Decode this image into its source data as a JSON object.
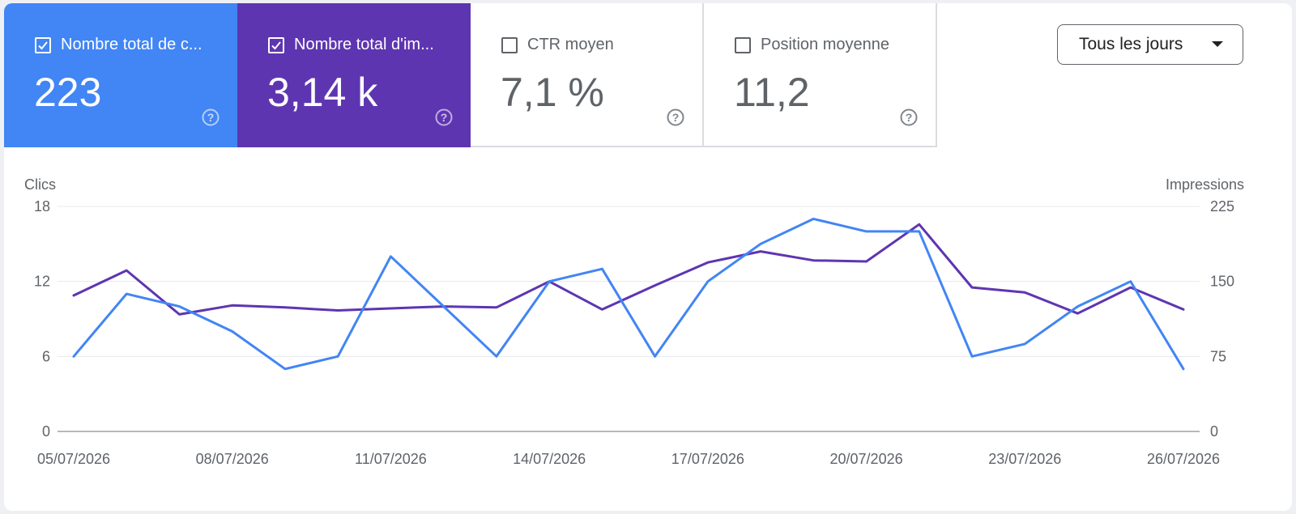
{
  "metrics": [
    {
      "label": "Nombre total de c...",
      "value": "223",
      "checked": true,
      "color": "#4285f4"
    },
    {
      "label": "Nombre total d'im...",
      "value": "3,14 k",
      "checked": true,
      "color": "#5e35b1"
    },
    {
      "label": "CTR moyen",
      "value": "7,1 %",
      "checked": false
    },
    {
      "label": "Position moyenne",
      "value": "11,2",
      "checked": false
    }
  ],
  "dropdown": {
    "label": "Tous les jours"
  },
  "chart_data": {
    "type": "line",
    "x": [
      "05/07/2026",
      "06/07/2026",
      "07/07/2026",
      "08/07/2026",
      "09/07/2026",
      "10/07/2026",
      "11/07/2026",
      "12/07/2026",
      "13/07/2026",
      "14/07/2026",
      "15/07/2026",
      "16/07/2026",
      "17/07/2026",
      "18/07/2026",
      "19/07/2026",
      "20/07/2026",
      "21/07/2026",
      "22/07/2026",
      "23/07/2026",
      "24/07/2026",
      "25/07/2026",
      "26/07/2026"
    ],
    "x_tick_labels": [
      "05/07/2026",
      "08/07/2026",
      "11/07/2026",
      "14/07/2026",
      "17/07/2026",
      "20/07/2026",
      "23/07/2026",
      "26/07/2026"
    ],
    "y_left": {
      "label": "Clics",
      "range": [
        0,
        18
      ],
      "ticks": [
        "0",
        "6",
        "12",
        "18"
      ]
    },
    "y_right": {
      "label": "Impressions",
      "range": [
        0,
        225
      ],
      "ticks": [
        "0",
        "75",
        "150",
        "225"
      ]
    },
    "grid": true,
    "series": [
      {
        "axis": "left",
        "color": "#4285f4",
        "values": [
          6,
          11,
          10,
          8,
          5,
          6,
          14,
          10,
          6,
          12,
          13,
          6,
          12,
          15,
          17,
          16,
          16,
          6,
          7,
          10,
          12,
          5
        ]
      },
      {
        "axis": "right",
        "color": "#5e35b1",
        "values": [
          136,
          161,
          117,
          126,
          124,
          121,
          123,
          125,
          124,
          150,
          122,
          146,
          169,
          180,
          171,
          170,
          207,
          144,
          139,
          118,
          144,
          122
        ]
      }
    ]
  }
}
